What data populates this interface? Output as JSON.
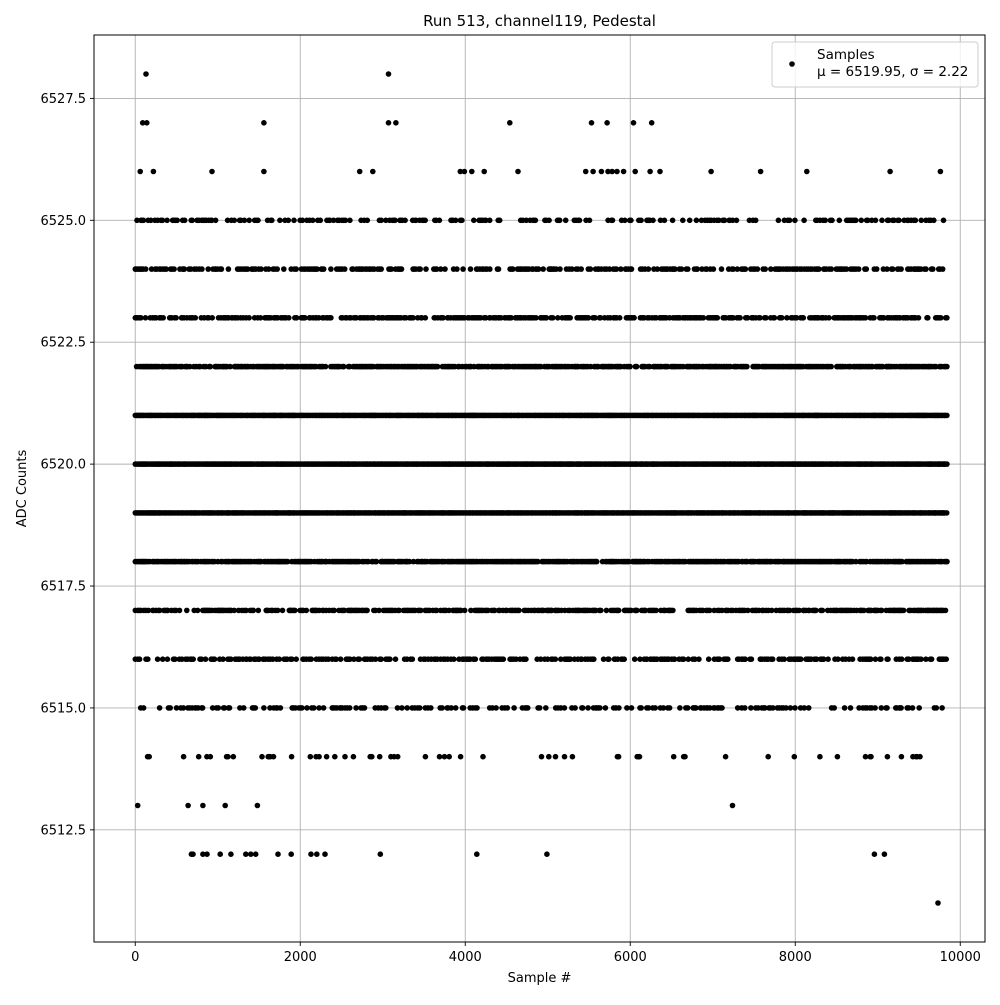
{
  "chart_data": {
    "type": "scatter",
    "title": "Run 513, channel119, Pedestal",
    "xlabel": "Sample #",
    "ylabel": "ADC Counts",
    "xlim": [
      -500,
      10300
    ],
    "ylim": [
      6510.2,
      6528.8
    ],
    "x_ticks": [
      0,
      2000,
      4000,
      6000,
      8000,
      10000
    ],
    "x_tick_labels": [
      "0",
      "2000",
      "4000",
      "6000",
      "8000",
      "10000"
    ],
    "y_ticks": [
      6512.5,
      6515.0,
      6517.5,
      6520.0,
      6522.5,
      6525.0,
      6527.5
    ],
    "y_tick_labels": [
      "6512.5",
      "6515.0",
      "6517.5",
      "6520.0",
      "6522.5",
      "6525.0",
      "6527.5"
    ],
    "grid": true,
    "legend": {
      "position": "top-right",
      "entries": [
        {
          "label": "Samples",
          "stats_text": "μ = 6519.95, σ = 2.22",
          "marker_color": "#000000"
        }
      ]
    },
    "series": [
      {
        "name": "Samples",
        "color": "#000000",
        "points": [
          [
            130,
            6528
          ],
          [
            3070,
            6528
          ],
          [
            90,
            6527
          ],
          [
            140,
            6527
          ],
          [
            1560,
            6527
          ],
          [
            3070,
            6527
          ],
          [
            3160,
            6527
          ],
          [
            4540,
            6527
          ],
          [
            5530,
            6527
          ],
          [
            5720,
            6527
          ],
          [
            6040,
            6527
          ],
          [
            6260,
            6527
          ],
          [
            60,
            6526
          ],
          [
            220,
            6526
          ],
          [
            930,
            6526
          ],
          [
            1560,
            6526
          ],
          [
            2720,
            6526
          ],
          [
            2880,
            6526
          ],
          [
            3940,
            6526
          ],
          [
            3990,
            6526
          ],
          [
            4080,
            6526
          ],
          [
            4230,
            6526
          ],
          [
            4640,
            6526
          ],
          [
            5460,
            6526
          ],
          [
            5550,
            6526
          ],
          [
            5650,
            6526
          ],
          [
            5730,
            6526
          ],
          [
            5780,
            6526
          ],
          [
            5840,
            6526
          ],
          [
            5920,
            6526
          ],
          [
            6060,
            6526
          ],
          [
            6240,
            6526
          ],
          [
            6360,
            6526
          ],
          [
            6980,
            6526
          ],
          [
            7580,
            6526
          ],
          [
            8140,
            6526
          ],
          [
            9150,
            6526
          ],
          [
            9760,
            6526
          ],
          [
            30,
            6513
          ],
          [
            640,
            6513
          ],
          [
            820,
            6513
          ],
          [
            1090,
            6513
          ],
          [
            1480,
            6513
          ],
          [
            7240,
            6513
          ],
          [
            680,
            6512
          ],
          [
            700,
            6512
          ],
          [
            820,
            6512
          ],
          [
            870,
            6512
          ],
          [
            1030,
            6512
          ],
          [
            1160,
            6512
          ],
          [
            1340,
            6512
          ],
          [
            1400,
            6512
          ],
          [
            1460,
            6512
          ],
          [
            1730,
            6512
          ],
          [
            1890,
            6512
          ],
          [
            2130,
            6512
          ],
          [
            2200,
            6512
          ],
          [
            2300,
            6512
          ],
          [
            2970,
            6512
          ],
          [
            4140,
            6512
          ],
          [
            4990,
            6512
          ],
          [
            8960,
            6512
          ],
          [
            9080,
            6512
          ],
          [
            9730,
            6511
          ]
        ]
      }
    ],
    "dense_bands": [
      {
        "y": 6525,
        "density": 0.35,
        "x_range": [
          0,
          9840
        ]
      },
      {
        "y": 6524,
        "density": 0.45,
        "x_range": [
          0,
          9840
        ]
      },
      {
        "y": 6523,
        "density": 0.6,
        "x_range": [
          0,
          9840
        ]
      },
      {
        "y": 6522,
        "density": 0.8,
        "x_range": [
          0,
          9840
        ]
      },
      {
        "y": 6521,
        "density": 1.0,
        "x_range": [
          0,
          9840
        ]
      },
      {
        "y": 6520,
        "density": 1.0,
        "x_range": [
          0,
          9840
        ]
      },
      {
        "y": 6519,
        "density": 1.0,
        "x_range": [
          0,
          9840
        ]
      },
      {
        "y": 6518,
        "density": 0.85,
        "x_range": [
          0,
          9840
        ]
      },
      {
        "y": 6517,
        "density": 0.6,
        "x_range": [
          0,
          9840
        ]
      },
      {
        "y": 6516,
        "density": 0.45,
        "x_range": [
          0,
          9840
        ]
      },
      {
        "y": 6515,
        "density": 0.3,
        "x_range": [
          0,
          9840
        ]
      },
      {
        "y": 6514,
        "density": 0.1,
        "x_range": [
          0,
          9840
        ]
      }
    ]
  }
}
